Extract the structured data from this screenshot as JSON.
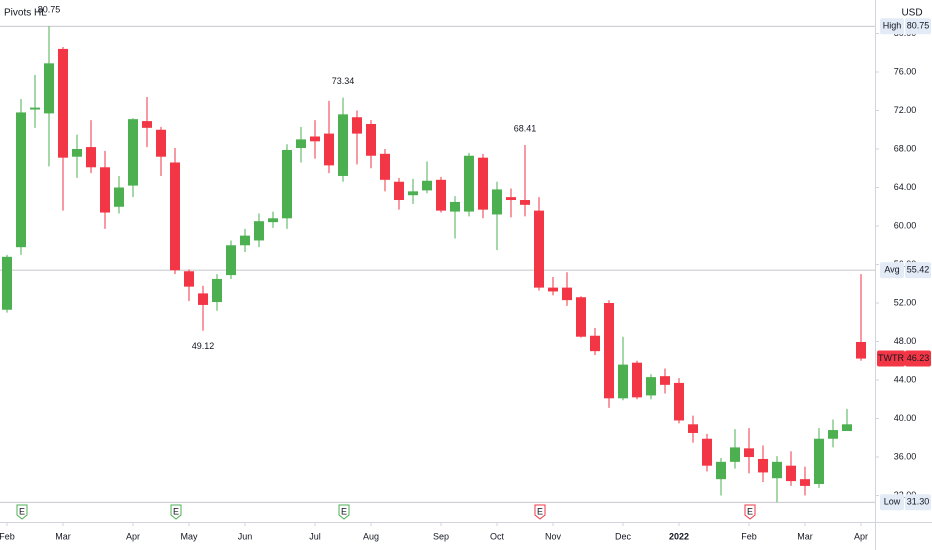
{
  "chart_data": {
    "type": "candlestick",
    "title": "Pivots HL",
    "currency": "USD",
    "categories": [
      "Feb",
      null,
      null,
      null,
      "Mar",
      null,
      null,
      null,
      null,
      "Apr",
      null,
      null,
      null,
      "May",
      null,
      null,
      null,
      "Jun",
      null,
      null,
      null,
      null,
      "Jul",
      null,
      null,
      null,
      "Aug",
      null,
      null,
      null,
      null,
      "Sep",
      null,
      null,
      null,
      "Oct",
      null,
      null,
      null,
      "Nov",
      null,
      null,
      null,
      null,
      "Dec",
      null,
      null,
      null,
      "2022",
      null,
      null,
      null,
      null,
      "Feb",
      null,
      null,
      null,
      "Mar",
      null,
      null,
      null,
      "Apr"
    ],
    "series": [
      {
        "name": "TWTR",
        "up_color": "#4caf50",
        "down_color": "#f23645",
        "open": [
          51.3,
          57.8,
          72.1,
          71.7,
          78.4,
          67.2,
          68.2,
          66.1,
          62.0,
          64.2,
          70.9,
          70.0,
          66.6,
          55.3,
          53.0,
          52.1,
          54.9,
          58.0,
          58.5,
          60.4,
          60.8,
          68.1,
          69.3,
          69.6,
          65.2,
          71.3,
          70.6,
          67.5,
          64.6,
          63.2,
          63.7,
          64.8,
          61.5,
          61.5,
          67.1,
          61.2,
          63.0,
          62.7,
          61.6,
          53.6,
          53.6,
          52.6,
          48.6,
          52.0,
          42.1,
          45.8,
          42.4,
          44.4,
          43.7,
          39.4,
          37.9,
          33.7,
          35.5,
          36.9,
          35.8,
          33.8,
          35.1,
          33.7,
          33.2,
          37.9,
          38.7,
          47.95
        ],
        "high": [
          57.0,
          73.2,
          75.7,
          80.75,
          78.6,
          69.5,
          71.0,
          67.8,
          65.2,
          71.2,
          73.4,
          70.3,
          68.1,
          55.5,
          53.8,
          55.0,
          58.5,
          59.7,
          61.3,
          61.5,
          68.5,
          70.3,
          71.0,
          73.0,
          73.34,
          72.0,
          71.0,
          68.0,
          65.0,
          64.9,
          66.7,
          65.1,
          63.1,
          67.6,
          67.5,
          64.6,
          63.9,
          68.41,
          63.0,
          54.7,
          55.2,
          52.7,
          49.4,
          52.3,
          48.5,
          46.0,
          44.6,
          45.2,
          44.2,
          40.3,
          38.4,
          35.9,
          38.9,
          39.0,
          37.2,
          36.1,
          36.6,
          35.0,
          39.0,
          39.9,
          41.0,
          55.0
        ],
        "low": [
          51.0,
          57.0,
          70.2,
          66.2,
          61.6,
          65.0,
          65.5,
          59.7,
          61.3,
          63.0,
          68.2,
          65.2,
          55.0,
          52.2,
          49.12,
          51.2,
          54.5,
          57.3,
          57.8,
          59.8,
          59.7,
          66.6,
          67.0,
          65.5,
          64.6,
          66.4,
          66.0,
          63.6,
          61.7,
          62.3,
          63.4,
          61.4,
          58.7,
          61.0,
          60.8,
          57.5,
          60.9,
          61.0,
          53.3,
          52.8,
          51.7,
          48.4,
          46.6,
          41.1,
          41.9,
          42.0,
          42.0,
          42.6,
          39.5,
          37.5,
          34.5,
          32.0,
          34.8,
          34.3,
          33.4,
          31.3,
          33.0,
          32.0,
          32.8,
          37.0,
          38.7,
          46.0
        ],
        "close": [
          56.8,
          71.8,
          72.3,
          76.9,
          67.1,
          68.0,
          66.1,
          61.4,
          64.0,
          71.1,
          70.2,
          67.2,
          55.4,
          53.7,
          51.8,
          54.5,
          58.0,
          59.0,
          60.5,
          60.8,
          67.9,
          69.0,
          68.8,
          66.3,
          71.6,
          69.6,
          67.3,
          64.8,
          62.7,
          63.6,
          64.7,
          61.6,
          62.5,
          67.3,
          61.7,
          63.8,
          62.7,
          62.2,
          53.6,
          53.2,
          52.3,
          48.5,
          47.0,
          42.1,
          45.6,
          42.2,
          44.3,
          43.5,
          39.8,
          38.5,
          35.1,
          35.5,
          37.0,
          36.0,
          34.4,
          35.5,
          33.5,
          33.0,
          37.9,
          38.8,
          39.4,
          46.23
        ]
      }
    ],
    "ylim": [
      29.25,
      83.48
    ],
    "yticks": [
      {
        "value": 32,
        "label": "32.00"
      },
      {
        "value": 36,
        "label": "36.00"
      },
      {
        "value": 40,
        "label": "40.00"
      },
      {
        "value": 44,
        "label": "44.00"
      },
      {
        "value": 48,
        "label": "48.00"
      },
      {
        "value": 52,
        "label": "52.00"
      },
      {
        "value": 56,
        "label": "56.00"
      },
      {
        "value": 60,
        "label": "60.00"
      },
      {
        "value": 64,
        "label": "64.00"
      },
      {
        "value": 68,
        "label": "68.00"
      },
      {
        "value": 72,
        "label": "72.00"
      },
      {
        "value": 76,
        "label": "76.00"
      },
      {
        "value": 80,
        "label": "80.00"
      }
    ],
    "grid": false,
    "levels": [
      {
        "name": "High",
        "value": 80.75,
        "label": "80.75"
      },
      {
        "name": "Avg",
        "value": 55.42,
        "label": "55.42"
      },
      {
        "name": "Low",
        "value": 31.3,
        "label": "31.30"
      }
    ],
    "price_tag": {
      "name": "TWTR",
      "value": 46.23,
      "label": "46.23",
      "color": "#f23645"
    },
    "earnings": [
      {
        "label": "E",
        "color": "#4caf50"
      },
      {
        "label": "E",
        "color": "#4caf50"
      },
      {
        "label": "E",
        "color": "#4caf50"
      },
      {
        "label": "E",
        "color": "#f23645"
      },
      {
        "label": "E",
        "color": "#f23645"
      }
    ]
  }
}
